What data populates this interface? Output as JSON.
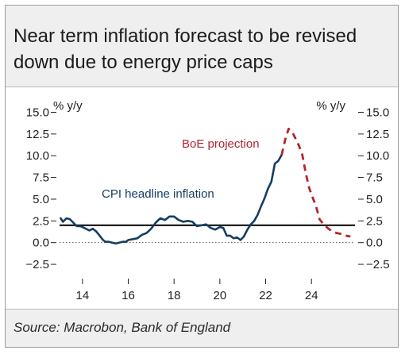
{
  "source": "Source: Macrobon, Bank of England",
  "chart_data": {
    "type": "line",
    "title": "Near term inflation forecast to be revised down due to energy price caps",
    "y_unit_left": "% y/y",
    "y_unit_right": "% y/y",
    "ylim": [
      -3.5,
      15.5
    ],
    "yticks": [
      15.0,
      12.5,
      10.0,
      7.5,
      5.0,
      2.5,
      0.0,
      -2.5
    ],
    "ytick_labels": [
      "15.0",
      "12.5",
      "10.0",
      "7.5",
      "5.0",
      "2.5",
      "0.0",
      "−2.5"
    ],
    "xlim": [
      2013.0,
      2025.9
    ],
    "xticks": [
      2014,
      2016,
      2018,
      2020,
      2022,
      2024
    ],
    "xtick_labels": [
      "14",
      "16",
      "18",
      "20",
      "22",
      "24"
    ],
    "grid": false,
    "reference_lines": [
      {
        "y": 2.0,
        "style": "solid"
      },
      {
        "y": 0.0,
        "style": "dotted"
      }
    ],
    "annotations": [
      {
        "text": "CPI headline inflation",
        "color": "#153e63"
      },
      {
        "text": "BoE projection",
        "color": "#b3242e"
      }
    ],
    "series": [
      {
        "label_index": 0,
        "color": "#153e63",
        "style": "solid",
        "x": [
          2013.05,
          2013.15,
          2013.3,
          2013.45,
          2013.6,
          2013.75,
          2013.9,
          2014.0,
          2014.15,
          2014.3,
          2014.45,
          2014.6,
          2014.75,
          2014.9,
          2015.0,
          2015.15,
          2015.3,
          2015.45,
          2015.6,
          2015.75,
          2015.9,
          2016.0,
          2016.2,
          2016.4,
          2016.6,
          2016.8,
          2017.0,
          2017.2,
          2017.4,
          2017.6,
          2017.8,
          2018.0,
          2018.2,
          2018.4,
          2018.6,
          2018.8,
          2019.0,
          2019.2,
          2019.4,
          2019.6,
          2019.8,
          2020.0,
          2020.15,
          2020.3,
          2020.45,
          2020.6,
          2020.75,
          2020.9,
          2021.05,
          2021.2,
          2021.35,
          2021.5,
          2021.65,
          2021.8,
          2021.95,
          2022.1,
          2022.25,
          2022.4,
          2022.55,
          2022.7
        ],
        "y": [
          2.8,
          2.4,
          2.8,
          2.7,
          2.3,
          1.9,
          1.9,
          1.8,
          1.6,
          1.4,
          1.6,
          1.3,
          0.8,
          0.3,
          0.1,
          0.1,
          0.0,
          -0.1,
          0.0,
          0.1,
          0.1,
          0.3,
          0.4,
          0.5,
          0.9,
          1.1,
          1.6,
          2.3,
          2.8,
          2.6,
          3.0,
          3.0,
          2.6,
          2.4,
          2.5,
          2.4,
          1.9,
          2.0,
          2.1,
          1.7,
          1.5,
          1.8,
          1.7,
          0.8,
          0.8,
          0.5,
          0.6,
          0.3,
          0.7,
          1.5,
          2.1,
          2.5,
          3.2,
          4.2,
          5.1,
          6.2,
          7.0,
          9.1,
          9.4,
          10.1
        ]
      },
      {
        "label_index": 1,
        "color": "#b3242e",
        "style": "dashed",
        "x": [
          2022.7,
          2022.85,
          2023.0,
          2023.15,
          2023.3,
          2023.45,
          2023.6,
          2023.75,
          2023.9,
          2024.05,
          2024.2,
          2024.35,
          2024.5,
          2024.7,
          2024.9,
          2025.1,
          2025.3,
          2025.5,
          2025.7
        ],
        "y": [
          10.1,
          11.8,
          13.1,
          12.8,
          12.0,
          11.2,
          10.1,
          8.0,
          6.3,
          5.2,
          4.2,
          2.7,
          2.2,
          1.7,
          1.3,
          1.1,
          1.0,
          0.8,
          0.7
        ]
      }
    ]
  }
}
